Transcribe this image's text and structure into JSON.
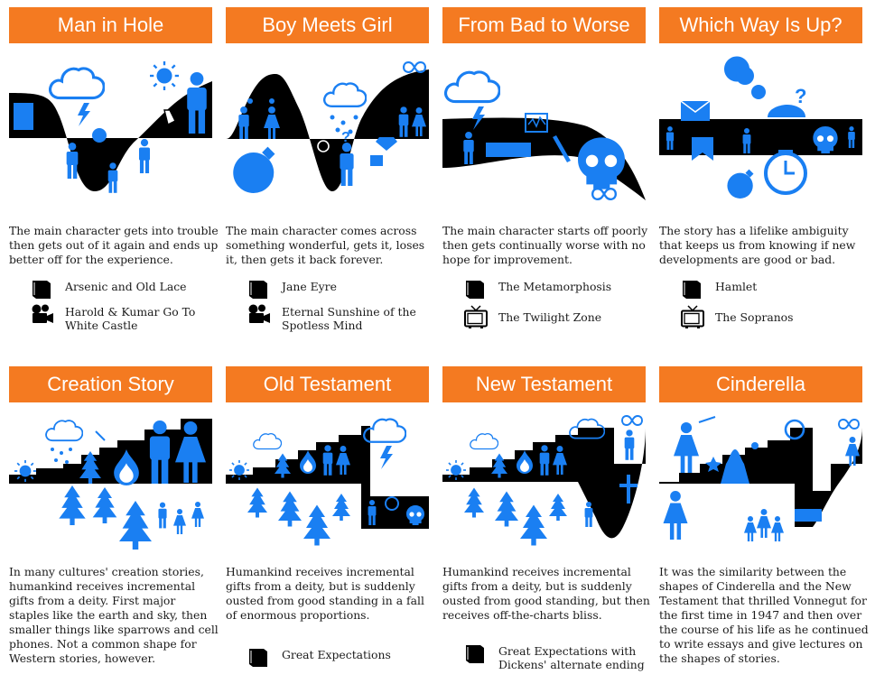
{
  "colors": {
    "accent": "#f47a21",
    "blue": "#1a7ff2",
    "ink": "#000000"
  },
  "panels": [
    {
      "title": "Man in Hole",
      "description": "The main character gets into trouble then gets out of it again and ends up better off for the experience.",
      "examples": [
        {
          "icon": "book-icon",
          "title": "Arsenic and Old Lace"
        },
        {
          "icon": "film-camera-icon",
          "title": "Harold & Kumar Go To White Castle"
        }
      ]
    },
    {
      "title": "Boy Meets Girl",
      "description": "The main character comes across something wonderful, gets it, loses it, then gets it back forever.",
      "examples": [
        {
          "icon": "book-icon",
          "title": "Jane Eyre"
        },
        {
          "icon": "film-camera-icon",
          "title": "Eternal Sunshine of the Spotless Mind"
        }
      ]
    },
    {
      "title": "From Bad to Worse",
      "description": "The main character starts off poorly then gets continually worse with no hope for improvement.",
      "examples": [
        {
          "icon": "book-icon",
          "title": "The Metamorphosis"
        },
        {
          "icon": "tv-icon",
          "title": "The Twilight Zone"
        }
      ]
    },
    {
      "title": "Which Way Is Up?",
      "description": "The story has a lifelike ambiguity that keeps us from knowing if new developments are good or bad.",
      "examples": [
        {
          "icon": "book-icon",
          "title": "Hamlet"
        },
        {
          "icon": "tv-icon",
          "title": "The Sopranos"
        }
      ]
    },
    {
      "title": "Creation Story",
      "description": "In many cultures' creation stories, humankind receives incremental gifts from a deity. First major staples like the earth and sky, then smaller things like sparrows and cell phones. Not a common shape for Western stories, however.",
      "examples": []
    },
    {
      "title": "Old Testament",
      "description": "Humankind receives incremental gifts from a deity, but is suddenly ousted from good standing in a fall of enormous proportions.",
      "examples": [
        {
          "icon": "book-icon",
          "title": "Great Expectations"
        }
      ]
    },
    {
      "title": "New Testament",
      "description": "Humankind receives incremental gifts from a deity, but is suddenly ousted from good standing, but then receives off-the-charts bliss.",
      "examples": [
        {
          "icon": "book-icon",
          "title": "Great Expectations with Dickens' alternate ending"
        }
      ]
    },
    {
      "title": "Cinderella",
      "description": "It was the similarity between the shapes of Cinderella and the New Testament that thrilled Vonnegut for the first time in 1947 and then over the course of his life as he continued to write essays and give lectures on the shapes of stories.",
      "examples": []
    }
  ]
}
